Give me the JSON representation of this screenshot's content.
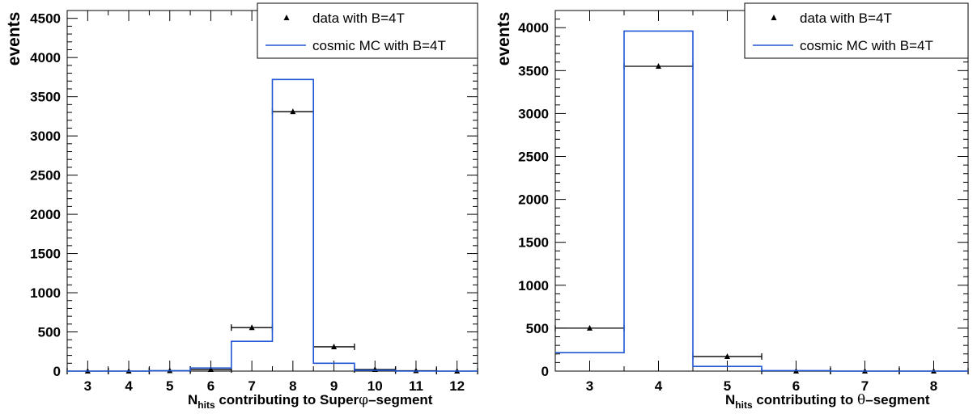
{
  "chart_data": [
    {
      "type": "bar",
      "title": "",
      "xlabel_main": "N",
      "xlabel_sub": "hits",
      "xlabel_rest": " contributing to Super",
      "xlabel_symbol": "φ",
      "xlabel_tail": "–segment",
      "ylabel": "events",
      "xlim": [
        2.5,
        12.5
      ],
      "ylim": [
        0,
        4600
      ],
      "xticks": [
        3,
        4,
        5,
        6,
        7,
        8,
        9,
        10,
        11,
        12
      ],
      "yticks": [
        0,
        500,
        1000,
        1500,
        2000,
        2500,
        3000,
        3500,
        4000,
        4500
      ],
      "legend_position": "top-right",
      "series": [
        {
          "name": "data with B=4T",
          "kind": "points",
          "color": "#000000",
          "x": [
            3,
            4,
            5,
            6,
            7,
            8,
            9,
            10,
            11,
            12
          ],
          "values": [
            0,
            0,
            5,
            20,
            555,
            3310,
            310,
            20,
            5,
            0
          ]
        },
        {
          "name": "cosmic MC with B=4T",
          "kind": "histogram",
          "color": "#1f56d6",
          "x": [
            3,
            4,
            5,
            6,
            7,
            8,
            9,
            10,
            11,
            12
          ],
          "values": [
            0,
            0,
            5,
            40,
            380,
            3720,
            100,
            10,
            0,
            0
          ]
        }
      ]
    },
    {
      "type": "bar",
      "title": "",
      "xlabel_main": "N",
      "xlabel_sub": "hits",
      "xlabel_rest": " contributing to ",
      "xlabel_symbol": "θ",
      "xlabel_tail": "–segment",
      "ylabel": "events",
      "xlim": [
        2.5,
        8.5
      ],
      "ylim": [
        0,
        4200
      ],
      "xticks": [
        3,
        4,
        5,
        6,
        7,
        8
      ],
      "yticks": [
        0,
        500,
        1000,
        1500,
        2000,
        2500,
        3000,
        3500,
        4000
      ],
      "legend_position": "top-right",
      "series": [
        {
          "name": "data with B=4T",
          "kind": "points",
          "color": "#000000",
          "x": [
            3,
            4,
            5,
            6,
            7,
            8
          ],
          "values": [
            500,
            3550,
            170,
            0,
            0,
            0
          ]
        },
        {
          "name": "cosmic MC with B=4T",
          "kind": "histogram",
          "color": "#1f56d6",
          "x": [
            3,
            4,
            5,
            6,
            7,
            8
          ],
          "values": [
            215,
            3960,
            55,
            5,
            0,
            0
          ]
        }
      ]
    }
  ]
}
